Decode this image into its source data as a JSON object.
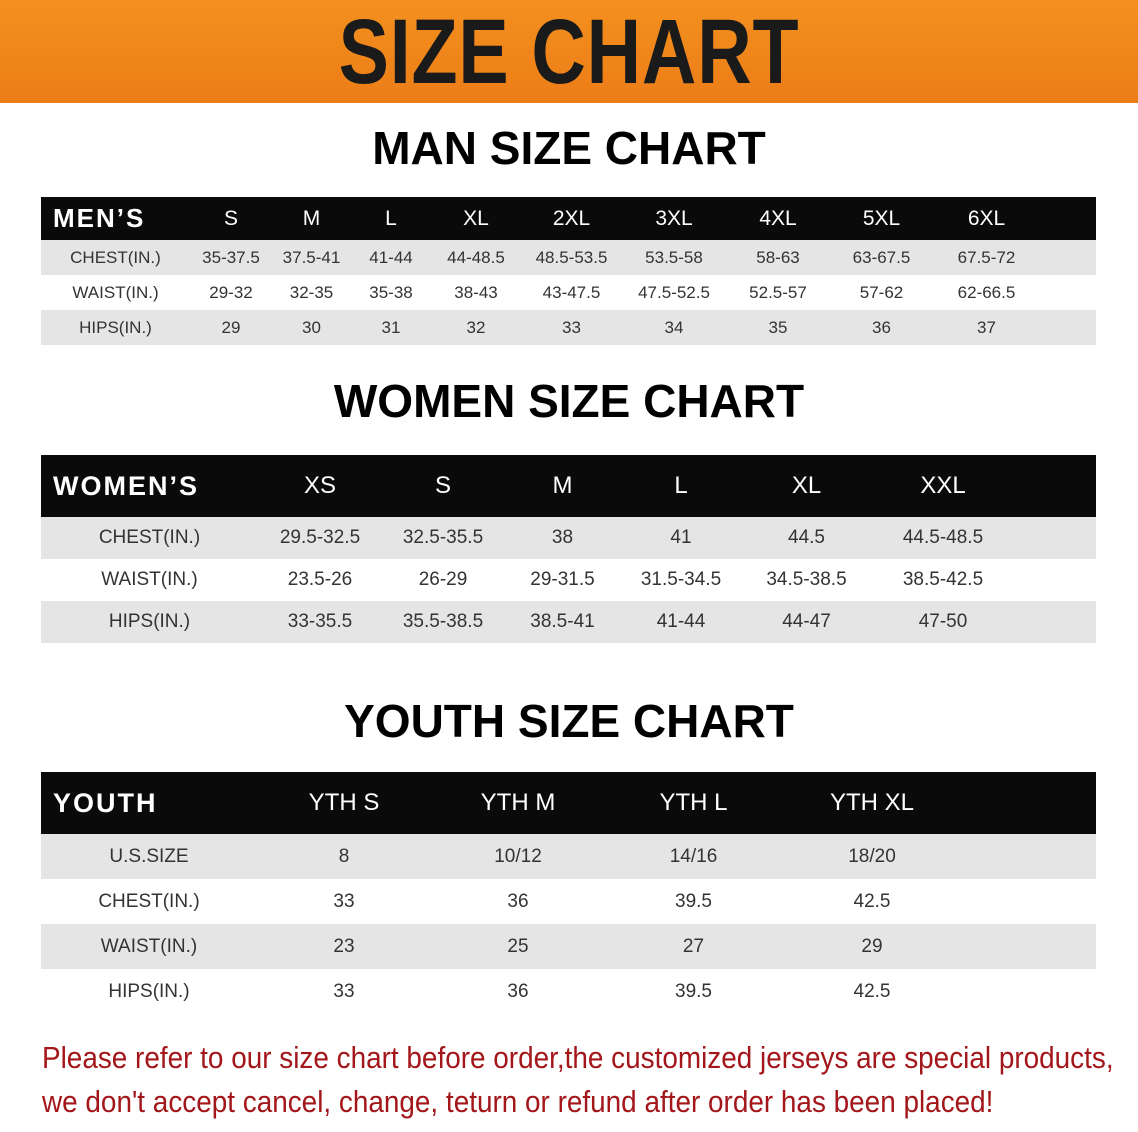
{
  "banner": {
    "title": "SIZE CHART",
    "color": "#ef8419"
  },
  "men": {
    "title": "MAN SIZE CHART",
    "header_label": "MEN’S",
    "sizes": [
      "S",
      "M",
      "L",
      "XL",
      "2XL",
      "3XL",
      "4XL",
      "5XL",
      "6XL"
    ],
    "rows": [
      {
        "label": "CHEST(IN.)",
        "values": [
          "35-37.5",
          "37.5-41",
          "41-44",
          "44-48.5",
          "48.5-53.5",
          "53.5-58",
          "58-63",
          "63-67.5",
          "67.5-72"
        ]
      },
      {
        "label": "WAIST(IN.)",
        "values": [
          "29-32",
          "32-35",
          "35-38",
          "38-43",
          "43-47.5",
          "47.5-52.5",
          "52.5-57",
          "57-62",
          "62-66.5"
        ]
      },
      {
        "label": "HIPS(IN.)",
        "values": [
          "29",
          "30",
          "31",
          "32",
          "33",
          "34",
          "35",
          "36",
          "37"
        ]
      }
    ]
  },
  "women": {
    "title": "WOMEN SIZE CHART",
    "header_label": "WOMEN’S",
    "sizes": [
      "XS",
      "S",
      "M",
      "L",
      "XL",
      "XXL"
    ],
    "rows": [
      {
        "label": "CHEST(IN.)",
        "values": [
          "29.5-32.5",
          "32.5-35.5",
          "38",
          "41",
          "44.5",
          "44.5-48.5"
        ]
      },
      {
        "label": "WAIST(IN.)",
        "values": [
          "23.5-26",
          "26-29",
          "29-31.5",
          "31.5-34.5",
          "34.5-38.5",
          "38.5-42.5"
        ]
      },
      {
        "label": "HIPS(IN.)",
        "values": [
          "33-35.5",
          "35.5-38.5",
          "38.5-41",
          "41-44",
          "44-47",
          "47-50"
        ]
      }
    ]
  },
  "youth": {
    "title": "YOUTH SIZE CHART",
    "header_label": "YOUTH",
    "sizes": [
      "YTH S",
      "YTH M",
      "YTH L",
      "YTH XL"
    ],
    "rows": [
      {
        "label": "U.S.SIZE",
        "values": [
          "8",
          "10/12",
          "14/16",
          "18/20"
        ]
      },
      {
        "label": "CHEST(IN.)",
        "values": [
          "33",
          "36",
          "39.5",
          "42.5"
        ]
      },
      {
        "label": "WAIST(IN.)",
        "values": [
          "23",
          "25",
          "27",
          "29"
        ]
      },
      {
        "label": "HIPS(IN.)",
        "values": [
          "33",
          "36",
          "39.5",
          "42.5"
        ]
      }
    ]
  },
  "note": {
    "line1": "Please refer to our size chart before order,the customized jerseys are special products,",
    "line2": "we don't accept cancel, change, teturn or refund after order has been placed!",
    "color": "#a3171b"
  }
}
